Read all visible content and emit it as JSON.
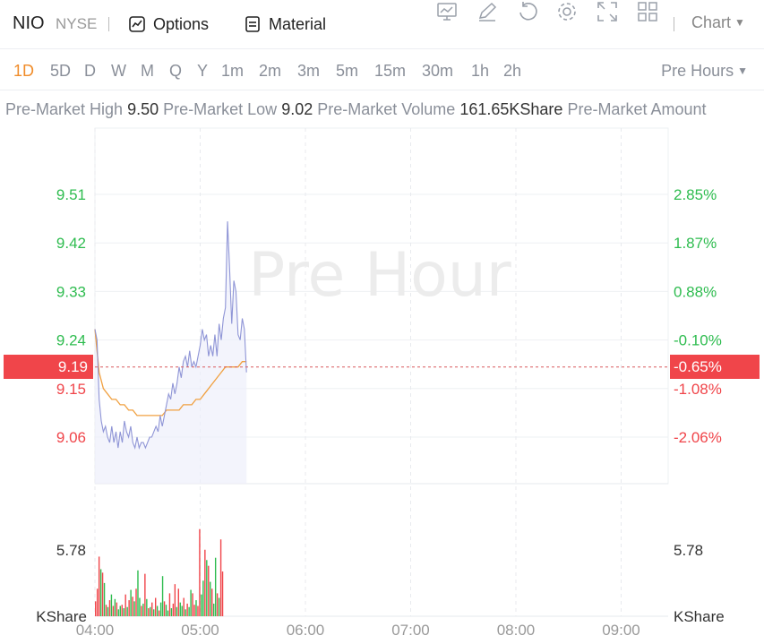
{
  "header": {
    "ticker": "NIO",
    "exchange": "NYSE",
    "options_label": "Options",
    "material_label": "Material",
    "chart_select": "Chart",
    "icons": [
      "compare-icon",
      "draw-icon",
      "refresh-icon",
      "settings-icon",
      "fullscreen-icon",
      "layout-icon"
    ]
  },
  "periods": [
    "1D",
    "5D",
    "D",
    "W",
    "M",
    "Q",
    "Y",
    "1m",
    "2m",
    "3m",
    "5m",
    "15m",
    "30m",
    "1h",
    "2h"
  ],
  "active_period": "1D",
  "session_select": "Pre Hours",
  "stats": {
    "high_label": "Pre-Market High",
    "high_value": "9.50",
    "low_label": "Pre-Market Low",
    "low_value": "9.02",
    "volume_label": "Pre-Market Volume",
    "volume_value": "161.65KShare",
    "amount_label": "Pre-Market Amount"
  },
  "colors": {
    "up": "#2ebc4f",
    "down": "#f0454a",
    "price_line": "#8f95d6",
    "avg_line": "#f0a040",
    "active": "#f08c2a"
  },
  "chart_data": {
    "type": "line",
    "watermark": "Pre Hour",
    "x_ticks": [
      "04:00",
      "05:00",
      "06:00",
      "07:00",
      "08:00",
      "09:00"
    ],
    "x_range": [
      "04:00",
      "09:30"
    ],
    "price_ticks": [
      9.51,
      9.42,
      9.33,
      9.24,
      9.15,
      9.06
    ],
    "pct_ticks": [
      "2.85%",
      "1.87%",
      "0.88%",
      "-0.10%",
      "-1.08%",
      "-2.06%"
    ],
    "reference_price": 9.19,
    "reference_price_label": "9.19",
    "reference_pct_label": "-0.65%",
    "volume_tick": "5.78",
    "volume_unit": "KShare",
    "series": [
      {
        "name": "",
        "type": "price",
        "x": [
          0,
          1,
          2,
          3,
          4,
          5,
          6,
          7,
          8,
          9,
          10,
          11,
          12,
          13,
          14,
          15,
          16,
          17,
          18,
          19,
          20,
          21,
          22,
          23,
          24,
          25,
          26,
          27,
          28,
          29,
          30,
          31,
          32,
          33,
          34,
          35,
          36,
          37,
          38,
          39,
          40,
          41,
          42,
          43,
          44,
          45,
          46,
          47,
          48,
          49,
          50,
          51,
          52,
          53,
          54,
          55,
          56,
          57,
          58,
          59,
          60,
          61,
          62,
          63,
          64,
          65,
          66,
          67,
          68,
          69,
          70,
          71,
          72
        ],
        "values": [
          9.26,
          9.24,
          9.13,
          9.09,
          9.07,
          9.08,
          9.06,
          9.05,
          9.08,
          9.05,
          9.07,
          9.04,
          9.07,
          9.05,
          9.09,
          9.07,
          9.06,
          9.08,
          9.05,
          9.04,
          9.06,
          9.04,
          9.05,
          9.05,
          9.04,
          9.05,
          9.06,
          9.06,
          9.07,
          9.08,
          9.07,
          9.1,
          9.08,
          9.1,
          9.12,
          9.14,
          9.13,
          9.16,
          9.14,
          9.16,
          9.19,
          9.17,
          9.2,
          9.21,
          9.19,
          9.22,
          9.19,
          9.2,
          9.19,
          9.21,
          9.23,
          9.26,
          9.24,
          9.25,
          9.21,
          9.23,
          9.21,
          9.25,
          9.21,
          9.27,
          9.24,
          9.28,
          9.3,
          9.46,
          9.37,
          9.27,
          9.35,
          9.33,
          9.25,
          9.24,
          9.28,
          9.26,
          9.18
        ]
      },
      {
        "name": "",
        "type": "average",
        "x": [
          0,
          2,
          4,
          6,
          8,
          10,
          12,
          14,
          16,
          18,
          20,
          22,
          24,
          26,
          28,
          30,
          32,
          34,
          36,
          38,
          40,
          42,
          44,
          46,
          48,
          50,
          52,
          54,
          56,
          58,
          60,
          62,
          64,
          66,
          68,
          70,
          72
        ],
        "values": [
          9.26,
          9.18,
          9.15,
          9.14,
          9.13,
          9.13,
          9.12,
          9.12,
          9.11,
          9.11,
          9.1,
          9.1,
          9.1,
          9.1,
          9.1,
          9.1,
          9.1,
          9.11,
          9.11,
          9.11,
          9.11,
          9.12,
          9.12,
          9.12,
          9.13,
          9.13,
          9.14,
          9.15,
          9.16,
          9.17,
          9.18,
          9.19,
          9.19,
          9.19,
          9.19,
          9.2,
          9.2
        ]
      },
      {
        "name": "",
        "type": "volume",
        "values": [
          1.3,
          2.4,
          5.2,
          4.1,
          3.8,
          2.9,
          1.0,
          0.8,
          1.4,
          1.9,
          0.9,
          1.5,
          1.2,
          0.6,
          0.9,
          1.0,
          0.7,
          1.9,
          0.8,
          1.4,
          2.3,
          1.7,
          1.3,
          2.4,
          4.0,
          1.6,
          0.9,
          1.1,
          3.7,
          1.5,
          0.7,
          0.8,
          1.2,
          0.6,
          1.6,
          0.9,
          0.5,
          1.2,
          3.5,
          1.3,
          1.0,
          0.5,
          2.0,
          0.7,
          1.1,
          2.8,
          0.8,
          2.4,
          1.2,
          0.9,
          1.6,
          0.6,
          1.1,
          0.8,
          2.3,
          2.0,
          1.0,
          1.4,
          0.9,
          7.6,
          1.9,
          3.1,
          5.8,
          4.9,
          4.4,
          3.0,
          2.4,
          1.1,
          5.1,
          2.0,
          1.6,
          6.7,
          3.9
        ],
        "directions": [
          "d",
          "d",
          "d",
          "u",
          "d",
          "u",
          "d",
          "u",
          "d",
          "u",
          "d",
          "u",
          "d",
          "u",
          "u",
          "d",
          "u",
          "d",
          "u",
          "d",
          "u",
          "d",
          "u",
          "d",
          "u",
          "u",
          "d",
          "u",
          "d",
          "u",
          "d",
          "u",
          "d",
          "u",
          "d",
          "u",
          "d",
          "u",
          "u",
          "d",
          "u",
          "u",
          "d",
          "u",
          "d",
          "d",
          "u",
          "d",
          "u",
          "u",
          "d",
          "u",
          "d",
          "u",
          "u",
          "d",
          "d",
          "u",
          "d",
          "d",
          "u",
          "u",
          "d",
          "u",
          "d",
          "u",
          "d",
          "u",
          "u",
          "d",
          "u",
          "d",
          "d"
        ]
      }
    ],
    "grid": true
  }
}
